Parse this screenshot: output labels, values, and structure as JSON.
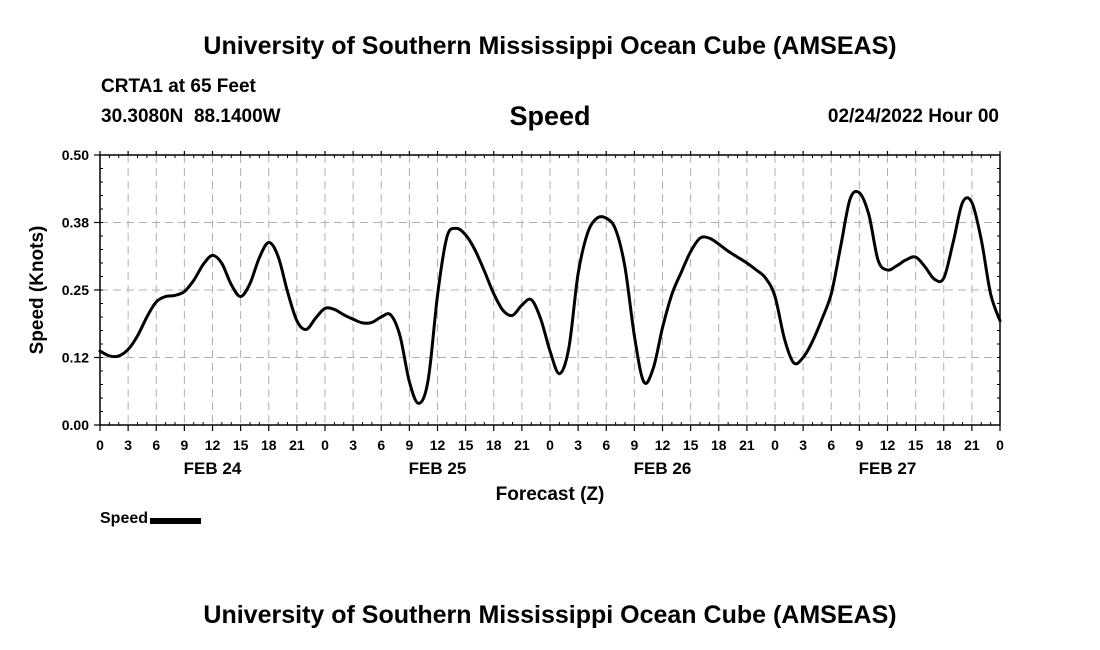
{
  "header": {
    "title": "University of Southern Mississippi Ocean Cube (AMSEAS)",
    "station": "CRTA1 at 65 Feet",
    "coordinates": "30.3080N  88.1400W",
    "variable": "Speed",
    "forecast_time": "02/24/2022 Hour 00"
  },
  "footer": {
    "title": "University of Southern Mississippi Ocean Cube (AMSEAS)"
  },
  "legend": {
    "label": "Speed"
  },
  "colors": {
    "line": "#000000",
    "grid": "#b0b0b0",
    "background": "#ffffff"
  },
  "chart_data": {
    "type": "line",
    "title": "Speed",
    "xlabel": "Forecast (Z)",
    "ylabel": "Speed (Knots)",
    "xlim": [
      0,
      96
    ],
    "ylim": [
      0,
      0.5
    ],
    "grid": true,
    "y_ticks": [
      0,
      0.125,
      0.25,
      0.375,
      0.5
    ],
    "y_tick_labels": [
      "0.00",
      "0.12",
      "0.25",
      "0.38",
      "0.50"
    ],
    "x_tick_hours": [
      0,
      3,
      6,
      9,
      12,
      15,
      18,
      21,
      24,
      27,
      30,
      33,
      36,
      39,
      42,
      45,
      48,
      51,
      54,
      57,
      60,
      63,
      66,
      69,
      72,
      75,
      78,
      81,
      84,
      87,
      90,
      93,
      96
    ],
    "x_tick_labels": [
      "0",
      "3",
      "6",
      "9",
      "12",
      "15",
      "18",
      "21",
      "0",
      "3",
      "6",
      "9",
      "12",
      "15",
      "18",
      "21",
      "0",
      "3",
      "6",
      "9",
      "12",
      "15",
      "18",
      "21",
      "0",
      "3",
      "6",
      "9",
      "12",
      "15",
      "18",
      "21",
      "0"
    ],
    "day_labels": [
      {
        "hour": 12,
        "label": "FEB 24"
      },
      {
        "hour": 36,
        "label": "FEB 25"
      },
      {
        "hour": 60,
        "label": "FEB 26"
      },
      {
        "hour": 84,
        "label": "FEB 27"
      }
    ],
    "series": [
      {
        "name": "Speed",
        "x": [
          0,
          1,
          2,
          3,
          4,
          5,
          6,
          7,
          8,
          9,
          10,
          11,
          12,
          13,
          14,
          15,
          16,
          17,
          18,
          19,
          20,
          21,
          22,
          23,
          24,
          25,
          26,
          27,
          28,
          29,
          30,
          31,
          32,
          33,
          34,
          35,
          36,
          37,
          38,
          39,
          40,
          41,
          42,
          43,
          44,
          45,
          46,
          47,
          48,
          49,
          50,
          51,
          52,
          53,
          54,
          55,
          56,
          57,
          58,
          59,
          60,
          61,
          62,
          63,
          64,
          65,
          66,
          67,
          68,
          69,
          70,
          71,
          72,
          73,
          74,
          75,
          76,
          77,
          78,
          79,
          80,
          81,
          82,
          83,
          84,
          85,
          86,
          87,
          88,
          89,
          90,
          91,
          92,
          93,
          94,
          95,
          96
        ],
        "values": [
          0.137,
          0.128,
          0.128,
          0.14,
          0.165,
          0.2,
          0.228,
          0.238,
          0.24,
          0.247,
          0.268,
          0.297,
          0.314,
          0.299,
          0.26,
          0.238,
          0.262,
          0.31,
          0.338,
          0.312,
          0.247,
          0.193,
          0.177,
          0.198,
          0.216,
          0.214,
          0.204,
          0.196,
          0.189,
          0.19,
          0.2,
          0.204,
          0.165,
          0.08,
          0.04,
          0.083,
          0.24,
          0.348,
          0.364,
          0.352,
          0.324,
          0.285,
          0.243,
          0.212,
          0.203,
          0.222,
          0.232,
          0.197,
          0.137,
          0.095,
          0.142,
          0.28,
          0.355,
          0.383,
          0.383,
          0.362,
          0.292,
          0.165,
          0.08,
          0.104,
          0.18,
          0.242,
          0.283,
          0.321,
          0.346,
          0.346,
          0.335,
          0.322,
          0.311,
          0.3,
          0.287,
          0.272,
          0.238,
          0.16,
          0.115,
          0.125,
          0.155,
          0.196,
          0.243,
          0.33,
          0.418,
          0.43,
          0.39,
          0.305,
          0.287,
          0.295,
          0.306,
          0.311,
          0.293,
          0.27,
          0.272,
          0.338,
          0.412,
          0.412,
          0.343,
          0.243,
          0.193
        ]
      }
    ]
  }
}
